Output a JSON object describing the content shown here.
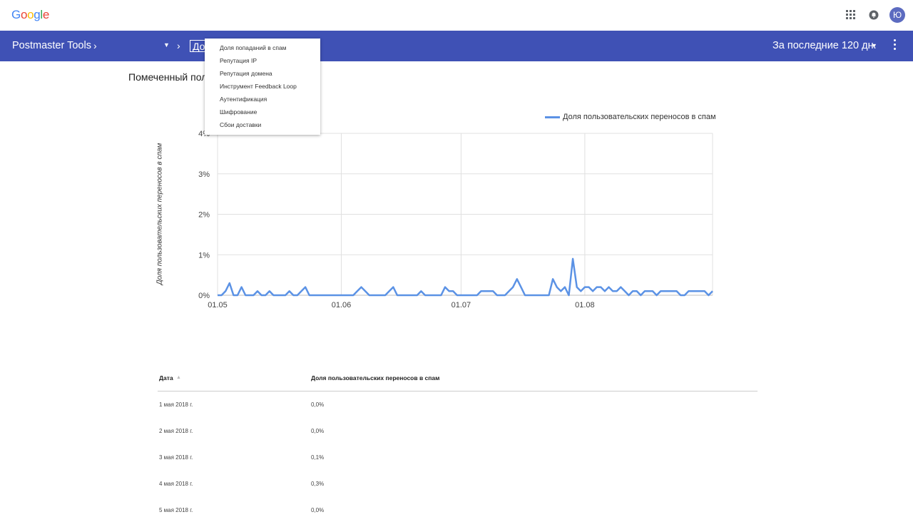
{
  "header": {
    "logo_letters": [
      "G",
      "o",
      "o",
      "g",
      "l",
      "e"
    ],
    "logo_colors": [
      "#4285f4",
      "#ea4335",
      "#fbbc05",
      "#4285f4",
      "#34a853",
      "#ea4335"
    ],
    "avatar_initial": "Ю"
  },
  "navbar": {
    "brand": "Postmaster Tools",
    "crumb_current": "До",
    "date_range": "За последние 120 дн."
  },
  "section": {
    "title": "Помеченный пол"
  },
  "dropdown_menu": {
    "items": [
      "Доля попаданий в спам",
      "Репутация IP",
      "Репутация домена",
      "Инструмент Feedback Loop",
      "Аутентификация",
      "Шифрование",
      "Сбои доставки"
    ]
  },
  "chart_data": {
    "type": "line",
    "ylabel": "Доля пользовательских переносов в спам",
    "y_ticks": [
      "0%",
      "1%",
      "2%",
      "3%",
      "4%"
    ],
    "x_ticks": [
      "01.05",
      "01.06",
      "01.07",
      "01.08"
    ],
    "ylim": [
      0,
      4
    ],
    "series_color": "#5b92e5",
    "legend_position": "top-right",
    "series": [
      {
        "name": "Доля пользовательских переносов в спам",
        "values": [
          0.0,
          0.0,
          0.1,
          0.3,
          0.0,
          0.0,
          0.2,
          0.0,
          0.0,
          0.0,
          0.1,
          0.0,
          0.0,
          0.1,
          0.0,
          0.0,
          0.0,
          0.0,
          0.1,
          0.0,
          0.0,
          0.1,
          0.2,
          0.0,
          0.0,
          0.0,
          0.0,
          0.0,
          0.0,
          0.0,
          0.0,
          0.0,
          0.0,
          0.0,
          0.0,
          0.1,
          0.2,
          0.1,
          0.0,
          0.0,
          0.0,
          0.0,
          0.0,
          0.1,
          0.2,
          0.0,
          0.0,
          0.0,
          0.0,
          0.0,
          0.0,
          0.1,
          0.0,
          0.0,
          0.0,
          0.0,
          0.0,
          0.2,
          0.1,
          0.1,
          0.0,
          0.0,
          0.0,
          0.0,
          0.0,
          0.0,
          0.1,
          0.1,
          0.1,
          0.1,
          0.0,
          0.0,
          0.0,
          0.1,
          0.2,
          0.4,
          0.2,
          0.0,
          0.0,
          0.0,
          0.0,
          0.0,
          0.0,
          0.0,
          0.4,
          0.2,
          0.1,
          0.2,
          0.0,
          0.9,
          0.2,
          0.1,
          0.2,
          0.2,
          0.1,
          0.2,
          0.2,
          0.1,
          0.2,
          0.1,
          0.1,
          0.2,
          0.1,
          0.0,
          0.1,
          0.1,
          0.0,
          0.1,
          0.1,
          0.1,
          0.0,
          0.1,
          0.1,
          0.1,
          0.1,
          0.1,
          0.0,
          0.0,
          0.1,
          0.1,
          0.1,
          0.1,
          0.1,
          0.0,
          0.1
        ]
      }
    ]
  },
  "table": {
    "columns": [
      "Дата",
      "Доля пользовательских переносов в спам"
    ],
    "sort_indicator": "▲",
    "rows": [
      {
        "date": "1 мая 2018 г.",
        "value": "0,0%"
      },
      {
        "date": "2 мая 2018 г.",
        "value": "0,0%"
      },
      {
        "date": "3 мая 2018 г.",
        "value": "0,1%"
      },
      {
        "date": "4 мая 2018 г.",
        "value": "0,3%"
      },
      {
        "date": "5 мая 2018 г.",
        "value": "0,0%"
      }
    ]
  }
}
